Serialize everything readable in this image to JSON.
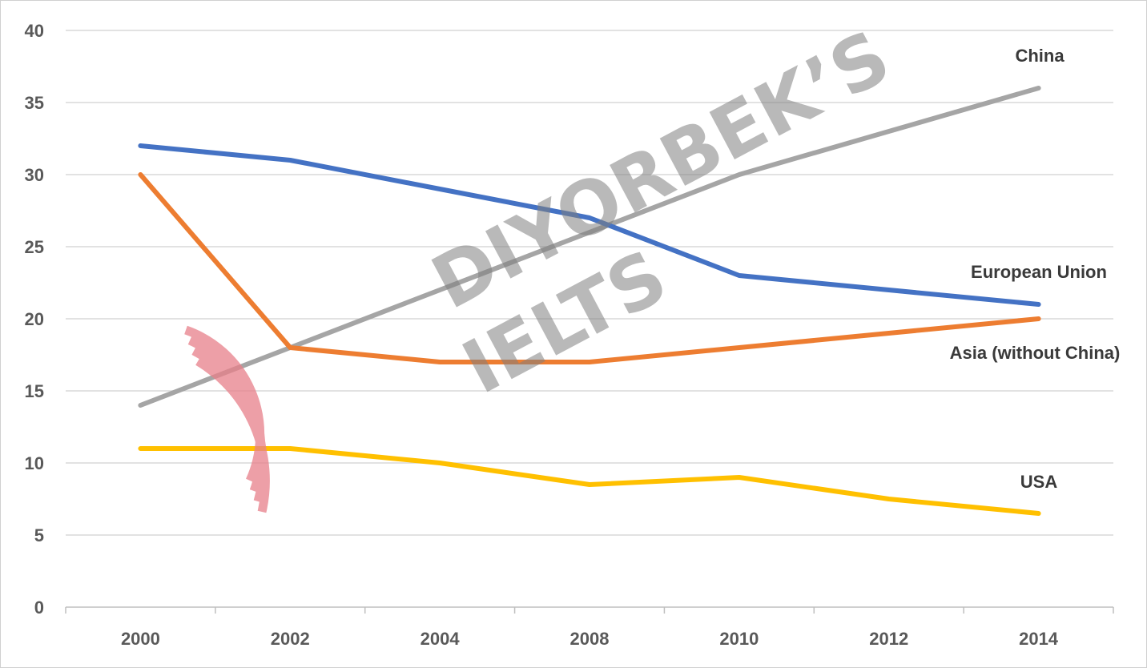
{
  "chart_data": {
    "type": "line",
    "categories": [
      "2000",
      "2002",
      "2004",
      "2008",
      "2010",
      "2012",
      "2014"
    ],
    "ylim": [
      0,
      40
    ],
    "yticks": [
      0,
      5,
      10,
      15,
      20,
      25,
      30,
      35,
      40
    ],
    "grid": true,
    "legend": "none",
    "series": [
      {
        "name": "China",
        "values": [
          14,
          18,
          22,
          26,
          30,
          33,
          36
        ],
        "color": "#a5a5a5"
      },
      {
        "name": "European Union",
        "values": [
          32,
          31,
          29,
          27,
          23,
          22,
          21
        ],
        "color": "#4472c4"
      },
      {
        "name": "Asia (without China)",
        "values": [
          30,
          18,
          17,
          17,
          18,
          19,
          20
        ],
        "color": "#ed7d31"
      },
      {
        "name": "USA",
        "values": [
          11,
          11,
          10,
          8.5,
          9,
          7.5,
          6.5
        ],
        "color": "#ffc000"
      }
    ]
  },
  "watermark": {
    "line1": "DIYORBEK’S",
    "line2": "IELTS",
    "logo_color": "#e8808a"
  }
}
